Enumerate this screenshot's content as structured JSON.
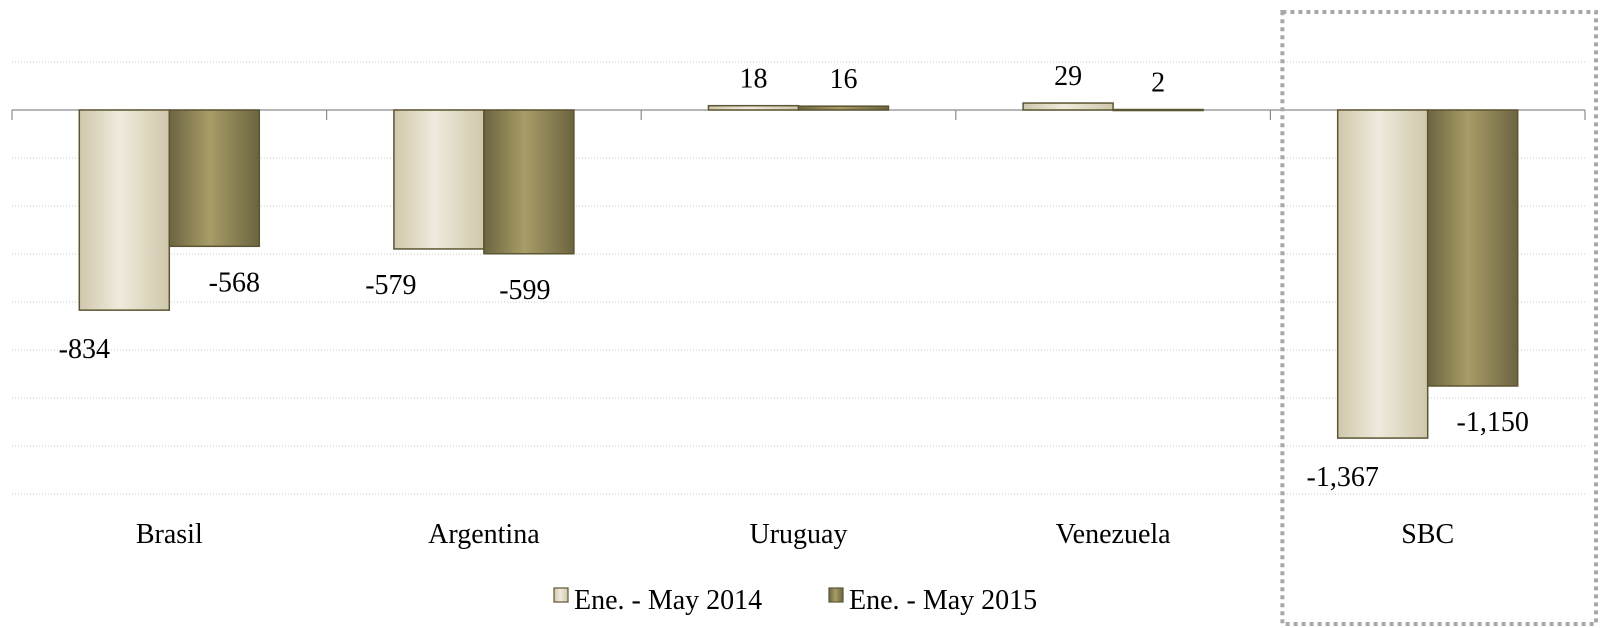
{
  "chart_data": {
    "type": "bar",
    "title": "",
    "xlabel": "",
    "ylabel": "",
    "categories": [
      "Brasil",
      "Argentina",
      "Uruguay",
      "Venezuela",
      "SBC"
    ],
    "series": [
      {
        "name": "Ene. - May 2014",
        "values": [
          -834,
          -579,
          18,
          29,
          -1367
        ],
        "labels": [
          "-834",
          "-579",
          "18",
          "29",
          "-1,367"
        ]
      },
      {
        "name": "Ene. - May 2015",
        "values": [
          -568,
          -599,
          16,
          2,
          -1150
        ],
        "labels": [
          "-568",
          "-599",
          "16",
          "2",
          "-1,150"
        ]
      }
    ],
    "ylim": [
      -1600,
      200
    ],
    "grid": true,
    "legend_position": "bottom",
    "highlighted_category": "SBC",
    "colors": {
      "series_2014_light": "#efeadc",
      "series_2014_dark": "#cfc8ab",
      "series_2015_light": "#a89d67",
      "series_2015_dark": "#6b6440",
      "bar_edge": "#5c5533"
    }
  }
}
